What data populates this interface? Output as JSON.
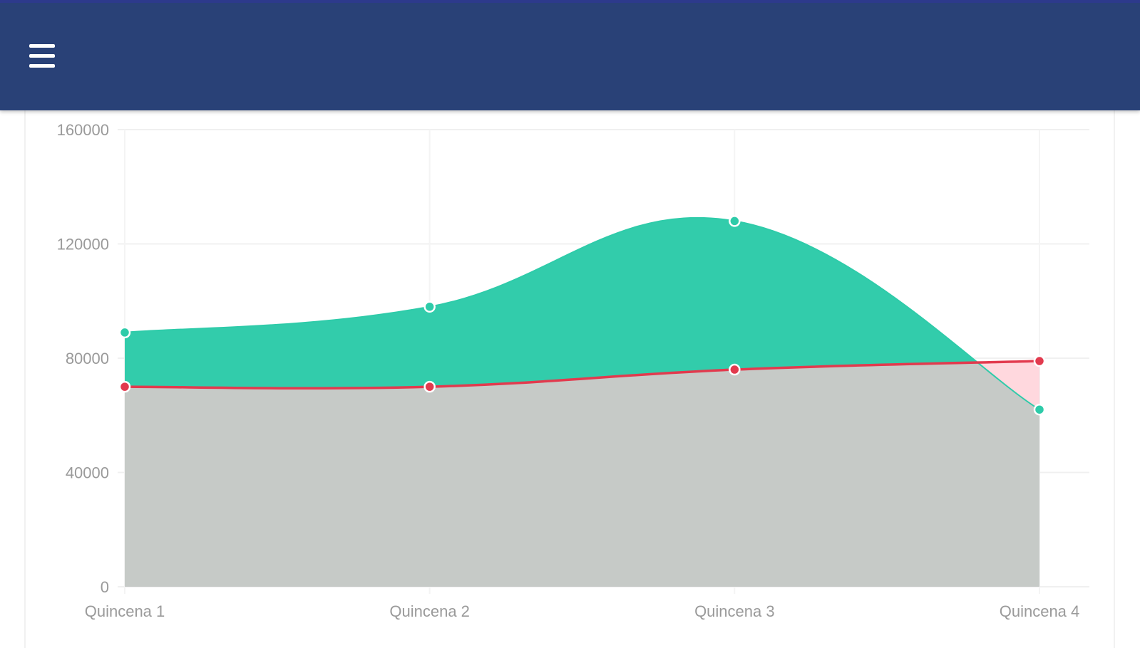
{
  "header": {
    "menu_icon": "hamburger-menu-icon",
    "background_color": "#294177",
    "accent_color": "#2d3a8c"
  },
  "chart_data": {
    "type": "area",
    "categories": [
      "Quincena 1",
      "Quincena 2",
      "Quincena 3",
      "Quincena 4"
    ],
    "ylim": [
      0,
      160000
    ],
    "yticks": [
      0,
      40000,
      80000,
      120000,
      160000
    ],
    "grid": true,
    "series": [
      {
        "values": [
          89000,
          98000,
          128000,
          62000
        ],
        "color": "#2ecba9",
        "fill": "#2ecba9"
      },
      {
        "values": [
          70000,
          70000,
          76000,
          79000
        ],
        "color": "#e23a4e",
        "fill": "#ffc9d1"
      }
    ]
  }
}
